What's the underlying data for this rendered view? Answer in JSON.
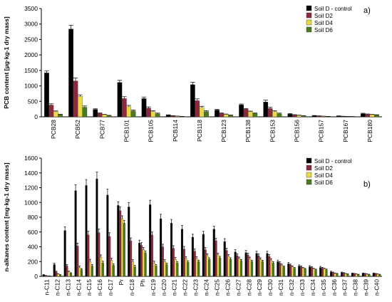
{
  "chart_data": [
    {
      "panel_label": "a)",
      "type": "bar",
      "ylabel": "PCB content [μg·kg-1 dry mass]",
      "ylim": [
        0,
        3500
      ],
      "yticks": [
        0,
        500,
        1000,
        1500,
        2000,
        2500,
        3000,
        3500
      ],
      "categories": [
        "PCB28",
        "PCB52",
        "PCB77",
        "PCB101",
        "PCB105",
        "PCB114",
        "PCB118",
        "PCB123",
        "PCB138",
        "PCB153",
        "PCB156",
        "PCB157",
        "PCB167",
        "PCB180"
      ],
      "series": [
        {
          "name": "Soil D - control",
          "color": "#000000",
          "values": [
            1420,
            2840,
            240,
            1110,
            590,
            55,
            1040,
            220,
            390,
            480,
            90,
            35,
            25,
            100
          ]
        },
        {
          "name": "Soil D2",
          "color": "#8b2a3a",
          "values": [
            380,
            1160,
            110,
            590,
            280,
            30,
            520,
            110,
            250,
            270,
            60,
            25,
            15,
            80
          ]
        },
        {
          "name": "Soil D4",
          "color": "#e8d94a",
          "values": [
            170,
            660,
            70,
            330,
            170,
            20,
            300,
            80,
            170,
            170,
            45,
            18,
            10,
            70
          ]
        },
        {
          "name": "Soil D6",
          "color": "#4a7a1e",
          "values": [
            70,
            310,
            40,
            190,
            100,
            10,
            170,
            50,
            110,
            100,
            30,
            12,
            8,
            60
          ]
        }
      ],
      "errors": [
        [
          60,
          120,
          20,
          70,
          50,
          10,
          80,
          20,
          25,
          60,
          15,
          8,
          5,
          15
        ],
        [
          40,
          100,
          15,
          60,
          40,
          8,
          60,
          15,
          20,
          40,
          10,
          6,
          4,
          12
        ],
        [
          20,
          50,
          10,
          40,
          25,
          5,
          40,
          10,
          15,
          25,
          8,
          4,
          3,
          10
        ],
        [
          15,
          40,
          8,
          30,
          20,
          4,
          30,
          8,
          12,
          20,
          6,
          3,
          2,
          8
        ]
      ],
      "legend_position": "top-right",
      "grid": false
    },
    {
      "panel_label": "b)",
      "type": "bar",
      "ylabel": "n-alkanes content [mg·kg-1 dry mass]",
      "ylim": [
        0,
        1600
      ],
      "yticks": [
        0,
        200,
        400,
        600,
        800,
        1000,
        1200,
        1400,
        1600
      ],
      "categories": [
        "n-C11",
        "n-C12",
        "n-C13",
        "n-C14",
        "n-C15",
        "n-C16",
        "n-C17",
        "Pr",
        "n-C18",
        "Ph",
        "n-C19",
        "n-C20",
        "n-C21",
        "n-C22",
        "n-C23",
        "n-C24",
        "n-C25",
        "n-C26",
        "n-C27",
        "n-C28",
        "n-C29",
        "n-C30",
        "n-C31",
        "n-C32",
        "n-C33",
        "n-C34",
        "n-C35",
        "n-C36",
        "n-C37",
        "n-C38",
        "n-C39",
        "n-C40"
      ],
      "series": [
        {
          "name": "Soil D - control",
          "color": "#000000",
          "values": [
            20,
            160,
            620,
            1160,
            1230,
            1320,
            1100,
            960,
            940,
            450,
            970,
            780,
            720,
            640,
            530,
            570,
            640,
            470,
            330,
            320,
            310,
            310,
            200,
            170,
            140,
            130,
            120,
            60,
            50,
            40,
            40,
            40
          ]
        },
        {
          "name": "Soil D2",
          "color": "#8b2a3a",
          "values": [
            10,
            60,
            140,
            410,
            560,
            590,
            540,
            890,
            480,
            420,
            560,
            400,
            380,
            370,
            340,
            360,
            480,
            350,
            280,
            290,
            280,
            270,
            180,
            150,
            130,
            120,
            110,
            50,
            45,
            35,
            35,
            35
          ]
        },
        {
          "name": "Soil D4",
          "color": "#e8d94a",
          "values": [
            5,
            30,
            60,
            120,
            200,
            260,
            220,
            780,
            200,
            360,
            180,
            200,
            230,
            240,
            240,
            280,
            290,
            270,
            240,
            240,
            230,
            220,
            150,
            130,
            110,
            100,
            100,
            40,
            35,
            30,
            30,
            30
          ]
        },
        {
          "name": "Soil D6",
          "color": "#4a7a1e",
          "values": [
            5,
            20,
            40,
            90,
            140,
            180,
            150,
            720,
            130,
            320,
            140,
            160,
            180,
            190,
            200,
            230,
            250,
            230,
            210,
            200,
            200,
            180,
            130,
            110,
            100,
            90,
            90,
            35,
            30,
            25,
            25,
            25
          ]
        }
      ],
      "errors": [
        [
          5,
          20,
          50,
          80,
          80,
          90,
          80,
          50,
          60,
          40,
          60,
          60,
          50,
          50,
          40,
          40,
          40,
          40,
          30,
          30,
          30,
          30,
          20,
          20,
          15,
          15,
          15,
          10,
          8,
          6,
          6,
          6
        ],
        [
          3,
          10,
          20,
          40,
          50,
          50,
          50,
          50,
          40,
          35,
          40,
          35,
          35,
          35,
          30,
          30,
          35,
          30,
          25,
          25,
          25,
          25,
          18,
          15,
          12,
          12,
          12,
          8,
          6,
          5,
          5,
          5
        ],
        [
          2,
          6,
          10,
          20,
          30,
          30,
          25,
          40,
          25,
          30,
          25,
          25,
          25,
          25,
          25,
          25,
          25,
          25,
          20,
          20,
          20,
          20,
          15,
          12,
          10,
          10,
          10,
          6,
          5,
          4,
          4,
          4
        ],
        [
          2,
          4,
          8,
          15,
          20,
          25,
          20,
          35,
          20,
          25,
          20,
          20,
          20,
          20,
          20,
          20,
          20,
          20,
          18,
          18,
          18,
          18,
          12,
          10,
          8,
          8,
          8,
          5,
          4,
          3,
          3,
          3
        ]
      ],
      "legend_position": "top-right",
      "grid": false
    }
  ]
}
